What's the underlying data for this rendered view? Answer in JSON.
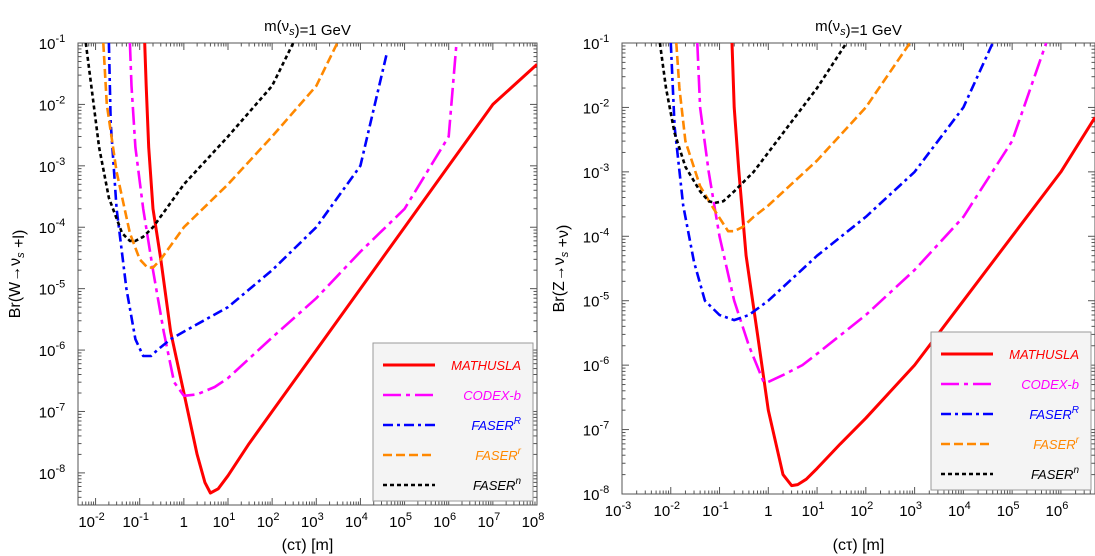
{
  "chart_data": [
    {
      "type": "line",
      "title": "m(ν_s)=1 GeV",
      "xlabel": "(cτ) [m]",
      "ylabel": "Br(W→ν_s +l)",
      "xscale": "log",
      "yscale": "log",
      "xlim": [
        0.004,
        100000000
      ],
      "ylim": [
        3e-09,
        0.1
      ],
      "xticks": [
        {
          "base": "10",
          "exp": "-2"
        },
        {
          "base": "10",
          "exp": "-1"
        },
        {
          "base": "1",
          "exp": ""
        },
        {
          "base": "10",
          "exp": "1"
        },
        {
          "base": "10",
          "exp": "2"
        },
        {
          "base": "10",
          "exp": "3"
        },
        {
          "base": "10",
          "exp": "4"
        },
        {
          "base": "10",
          "exp": "5"
        },
        {
          "base": "10",
          "exp": "6"
        },
        {
          "base": "10",
          "exp": "7"
        },
        {
          "base": "10",
          "exp": "8"
        }
      ],
      "yticks": [
        {
          "base": "10",
          "exp": "-8"
        },
        {
          "base": "10",
          "exp": "-7"
        },
        {
          "base": "10",
          "exp": "-6"
        },
        {
          "base": "10",
          "exp": "-5"
        },
        {
          "base": "10",
          "exp": "-4"
        },
        {
          "base": "10",
          "exp": "-3"
        },
        {
          "base": "10",
          "exp": "-2"
        },
        {
          "base": "10",
          "exp": "-1"
        }
      ],
      "legend_position": "bottom-right",
      "series": [
        {
          "name": "MATHUSLA",
          "color": "#ff0000",
          "dash": "solid",
          "x": [
            0.13,
            0.14,
            0.16,
            0.2,
            0.3,
            0.5,
            1,
            2,
            3,
            4,
            6,
            10,
            30,
            100,
            1000,
            10000,
            100000,
            1000000,
            10000000,
            100000000
          ],
          "y": [
            0.1,
            0.02,
            0.002,
            0.0002,
            3e-05,
            2e-06,
            2e-07,
            2e-08,
            7e-09,
            4.7e-09,
            5.5e-09,
            9e-09,
            3e-08,
            1e-07,
            1e-06,
            1e-05,
            0.0001,
            0.001,
            0.01,
            0.045
          ]
        },
        {
          "name": "CODEX-b",
          "color": "#ff00ff",
          "dash": "long-dash",
          "x": [
            0.06,
            0.065,
            0.08,
            0.12,
            0.2,
            0.35,
            0.6,
            1,
            2,
            5,
            10,
            100,
            1000,
            10000,
            100000,
            1000000,
            1500000
          ],
          "y": [
            0.1,
            0.02,
            0.002,
            0.0002,
            2e-05,
            2e-06,
            3e-07,
            1.8e-07,
            1.9e-07,
            2.5e-07,
            3.5e-07,
            1.6e-06,
            7e-06,
            4e-05,
            0.0002,
            0.003,
            0.1
          ]
        },
        {
          "name": "FASER^R",
          "color": "#0000ff",
          "dash": "dash-dot",
          "x": [
            0.02,
            0.022,
            0.03,
            0.05,
            0.08,
            0.12,
            0.18,
            0.25,
            0.5,
            1,
            10,
            100,
            1000,
            10000,
            40000
          ],
          "y": [
            0.1,
            0.005,
            0.0002,
            1e-05,
            1.5e-06,
            8e-07,
            8e-07,
            1e-06,
            1.5e-06,
            2e-06,
            5e-06,
            2e-05,
            0.0001,
            0.001,
            0.07
          ]
        },
        {
          "name": "FASER^r",
          "color": "#ff8800",
          "dash": "dash",
          "x": [
            0.015,
            0.018,
            0.03,
            0.06,
            0.1,
            0.15,
            0.2,
            0.3,
            0.5,
            1,
            10,
            100,
            1000,
            3000
          ],
          "y": [
            0.1,
            0.01,
            0.0008,
            8e-05,
            3e-05,
            2.2e-05,
            2.2e-05,
            3e-05,
            5e-05,
            0.0001,
            0.0005,
            0.003,
            0.02,
            0.1
          ]
        },
        {
          "name": "FASER^n",
          "color": "#000000",
          "dash": "short-dash",
          "x": [
            0.006,
            0.008,
            0.012,
            0.02,
            0.04,
            0.06,
            0.08,
            0.12,
            0.2,
            0.4,
            1,
            10,
            100,
            300
          ],
          "y": [
            0.1,
            0.02,
            0.002,
            0.0003,
            8e-05,
            6e-05,
            6e-05,
            7e-05,
            0.0001,
            0.0002,
            0.0005,
            0.003,
            0.02,
            0.1
          ]
        }
      ]
    },
    {
      "type": "line",
      "title": "m(ν_s)=1 GeV",
      "xlabel": "(cτ) [m]",
      "ylabel": "Br(Z→ν_s +ν)",
      "xscale": "log",
      "yscale": "log",
      "xlim": [
        0.001,
        5000000
      ],
      "ylim": [
        1e-08,
        0.1
      ],
      "xticks": [
        {
          "base": "10",
          "exp": "-3"
        },
        {
          "base": "10",
          "exp": "-2"
        },
        {
          "base": "10",
          "exp": "-1"
        },
        {
          "base": "1",
          "exp": ""
        },
        {
          "base": "10",
          "exp": "1"
        },
        {
          "base": "10",
          "exp": "2"
        },
        {
          "base": "10",
          "exp": "3"
        },
        {
          "base": "10",
          "exp": "4"
        },
        {
          "base": "10",
          "exp": "5"
        },
        {
          "base": "10",
          "exp": "6"
        }
      ],
      "yticks": [
        {
          "base": "10",
          "exp": "-8"
        },
        {
          "base": "10",
          "exp": "-7"
        },
        {
          "base": "10",
          "exp": "-6"
        },
        {
          "base": "10",
          "exp": "-5"
        },
        {
          "base": "10",
          "exp": "-4"
        },
        {
          "base": "10",
          "exp": "-3"
        },
        {
          "base": "10",
          "exp": "-2"
        },
        {
          "base": "10",
          "exp": "-1"
        }
      ],
      "legend_position": "bottom-right",
      "series": [
        {
          "name": "MATHUSLA",
          "color": "#ff0000",
          "dash": "solid",
          "x": [
            0.18,
            0.2,
            0.25,
            0.35,
            0.6,
            1,
            2,
            3,
            4,
            6,
            10,
            30,
            100,
            1000,
            10000,
            100000,
            1000000,
            5000000
          ],
          "y": [
            0.1,
            0.01,
            0.001,
            5e-05,
            3e-06,
            2e-07,
            2e-08,
            1.35e-08,
            1.4e-08,
            1.7e-08,
            2.5e-08,
            6e-08,
            1.5e-07,
            1e-06,
            1e-05,
            0.0001,
            0.001,
            0.007
          ]
        },
        {
          "name": "CODEX-b",
          "color": "#ff00ff",
          "dash": "long-dash",
          "x": [
            0.035,
            0.04,
            0.06,
            0.1,
            0.2,
            0.4,
            0.8,
            1,
            2,
            5,
            10,
            100,
            1000,
            10000,
            100000,
            500000
          ],
          "y": [
            0.1,
            0.01,
            0.001,
            0.0001,
            1e-05,
            2e-06,
            5.5e-07,
            5.5e-07,
            7e-07,
            1e-06,
            1.5e-06,
            6e-06,
            3e-05,
            0.0002,
            0.003,
            0.1
          ]
        },
        {
          "name": "FASER^R",
          "color": "#0000ff",
          "dash": "dash-dot",
          "x": [
            0.01,
            0.012,
            0.018,
            0.03,
            0.05,
            0.1,
            0.2,
            0.4,
            1,
            10,
            100,
            1000,
            10000,
            40000
          ],
          "y": [
            0.1,
            0.005,
            0.0003,
            4e-05,
            1e-05,
            6e-06,
            5e-06,
            6e-06,
            1e-05,
            5e-05,
            0.0002,
            0.001,
            0.01,
            0.1
          ]
        },
        {
          "name": "FASER^r",
          "color": "#ff8800",
          "dash": "dash",
          "x": [
            0.013,
            0.015,
            0.02,
            0.04,
            0.08,
            0.15,
            0.2,
            0.3,
            0.5,
            1,
            10,
            100,
            800
          ],
          "y": [
            0.1,
            0.02,
            0.003,
            0.0006,
            0.00025,
            0.00012,
            0.00012,
            0.00014,
            0.0002,
            0.0003,
            0.0015,
            0.01,
            0.1
          ]
        },
        {
          "name": "FASER^n",
          "color": "#000000",
          "dash": "short-dash",
          "x": [
            0.006,
            0.008,
            0.012,
            0.02,
            0.04,
            0.06,
            0.08,
            0.12,
            0.2,
            0.5,
            1,
            10,
            40
          ],
          "y": [
            0.1,
            0.02,
            0.004,
            0.0012,
            0.0005,
            0.00035,
            0.00033,
            0.00035,
            0.0005,
            0.001,
            0.002,
            0.02,
            0.1
          ]
        }
      ]
    }
  ]
}
